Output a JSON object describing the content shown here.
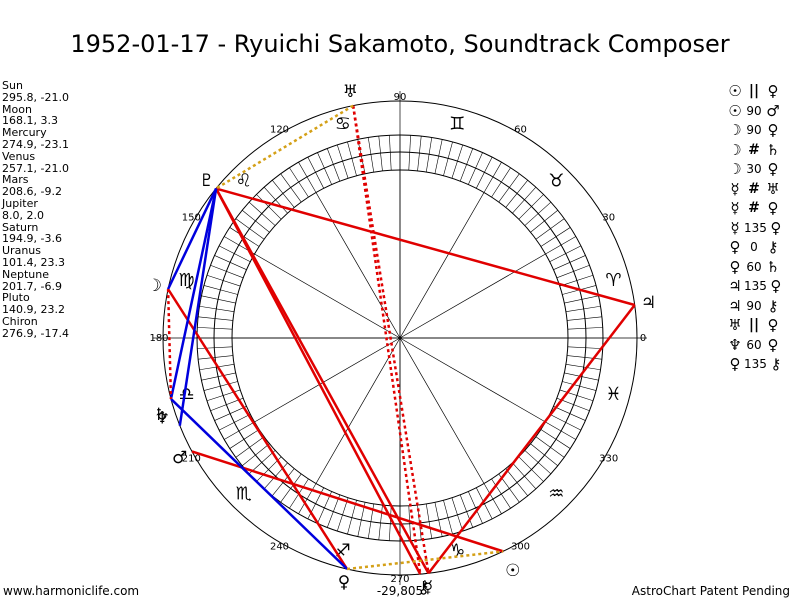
{
  "title": "1952-01-17 - Ryuichi Sakamoto, Soundtrack Composer",
  "planets": [
    {
      "name": "Sun",
      "pos": "295.8, -21.0",
      "glyph": "☉",
      "lon": 295.8
    },
    {
      "name": "Moon",
      "pos": "168.1, 3.3",
      "glyph": "☽",
      "lon": 168.1
    },
    {
      "name": "Mercury",
      "pos": "274.9, -23.1",
      "glyph": "☿",
      "lon": 274.9
    },
    {
      "name": "Venus",
      "pos": "257.1, -21.0",
      "glyph": "♀",
      "lon": 257.1
    },
    {
      "name": "Mars",
      "pos": "208.6, -9.2",
      "glyph": "♂",
      "lon": 208.6
    },
    {
      "name": "Jupiter",
      "pos": "8.0, 2.0",
      "glyph": "♃",
      "lon": 8.0
    },
    {
      "name": "Saturn",
      "pos": "194.9, -3.6",
      "glyph": "♄",
      "lon": 194.9
    },
    {
      "name": "Uranus",
      "pos": "101.4, 23.3",
      "glyph": "♅",
      "lon": 101.4
    },
    {
      "name": "Neptune",
      "pos": "201.7, -6.9",
      "glyph": "♆",
      "lon": 201.7
    },
    {
      "name": "Pluto",
      "pos": "140.9, 23.2",
      "glyph": "♇",
      "lon": 140.9
    },
    {
      "name": "Chiron",
      "pos": "276.9, -17.4",
      "glyph": "⚷",
      "lon": 276.9
    }
  ],
  "aspects": [
    {
      "p1": "☉",
      "aspect": "||",
      "p2": "♀"
    },
    {
      "p1": "☉",
      "aspect": "90",
      "p2": "♂"
    },
    {
      "p1": "☽",
      "aspect": "90",
      "p2": "♀"
    },
    {
      "p1": "☽",
      "aspect": "#",
      "p2": "♄"
    },
    {
      "p1": "☽",
      "aspect": "30",
      "p2": "♀"
    },
    {
      "p1": "☿",
      "aspect": "#",
      "p2": "♅"
    },
    {
      "p1": "☿",
      "aspect": "#",
      "p2": "♀"
    },
    {
      "p1": "☿",
      "aspect": "135",
      "p2": "♀"
    },
    {
      "p1": "♀",
      "aspect": "0",
      "p2": "⚷"
    },
    {
      "p1": "♀",
      "aspect": "60",
      "p2": "♄"
    },
    {
      "p1": "♃",
      "aspect": "135",
      "p2": "♀"
    },
    {
      "p1": "♃",
      "aspect": "90",
      "p2": "⚷"
    },
    {
      "p1": "♅",
      "aspect": "||",
      "p2": "♀"
    },
    {
      "p1": "♆",
      "aspect": "60",
      "p2": "♀"
    },
    {
      "p1": "♀",
      "aspect": "135",
      "p2": "⚷"
    }
  ],
  "degree_labels": [
    "0",
    "30",
    "60",
    "90",
    "120",
    "150",
    "180",
    "210",
    "240",
    "270",
    "300",
    "330"
  ],
  "zodiac_signs": [
    "♈",
    "♉",
    "♊",
    "♋",
    "♌",
    "♍",
    "♎",
    "♏",
    "♐",
    "♑",
    "♒",
    "♓"
  ],
  "bottom_value": "-29,805",
  "footer_left": "www.harmoniclife.com",
  "footer_right": "AstroChart Patent Pending",
  "colors": {
    "square": "#e00000",
    "trine": "#0000dd",
    "parallel": "#e00000",
    "minor": "#d4a017"
  }
}
